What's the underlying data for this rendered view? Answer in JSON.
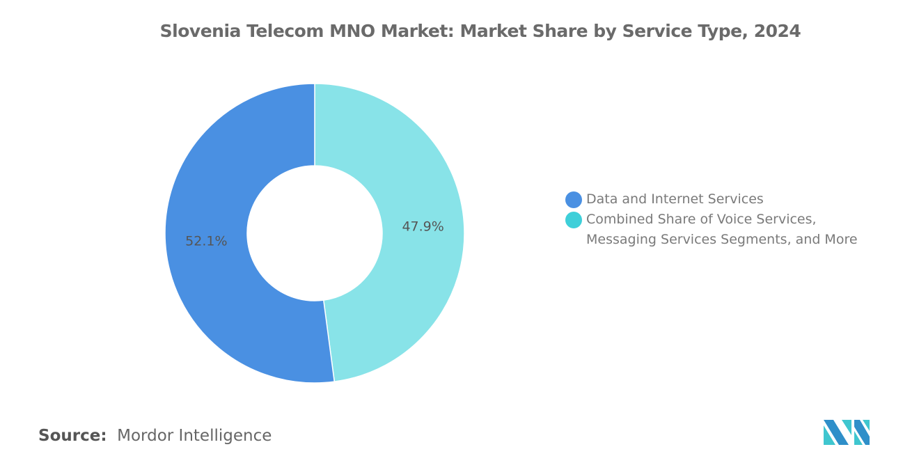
{
  "chart_data": {
    "type": "pie",
    "donut": true,
    "title": "Slovenia Telecom MNO Market: Market Share by Service Type, 2024",
    "slices": [
      {
        "name": "Combined Share of Voice Services, Messaging Services Segments, and More",
        "value": 47.9,
        "label": "47.9%",
        "color": "#88e3e8",
        "legend_color": "#3ecfd9"
      },
      {
        "name": "Data and Internet Services",
        "value": 52.1,
        "label": "52.1%",
        "color": "#4a90e2",
        "legend_color": "#4a90e2"
      }
    ],
    "legend_placement": "right"
  },
  "legend": {
    "line1": "Data and Internet Services",
    "line2a": "Combined Share of Voice Services,",
    "line2b": "Messaging Services Segments, and More"
  },
  "source": {
    "label": "Source:",
    "value": "Mordor Intelligence"
  },
  "logo": {
    "text": "Mordor Intelligence"
  }
}
